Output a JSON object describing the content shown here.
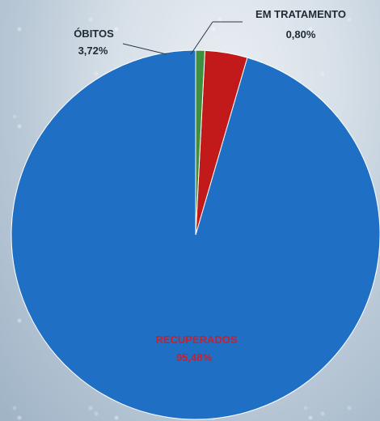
{
  "chart_data": {
    "type": "pie",
    "start_angle_deg": 0,
    "direction": "counterclockwise",
    "slices": [
      {
        "label": "RECUPERADOS",
        "value": 95.48,
        "value_label": "95,48%",
        "color": "#1f6fc5"
      },
      {
        "label": "ÓBITOS",
        "value": 3.72,
        "value_label": "3,72%",
        "color": "#c21a1a"
      },
      {
        "label": "EM TRATAMENTO",
        "value": 0.8,
        "value_label": "0,80%",
        "color": "#3e8f3e"
      }
    ]
  }
}
